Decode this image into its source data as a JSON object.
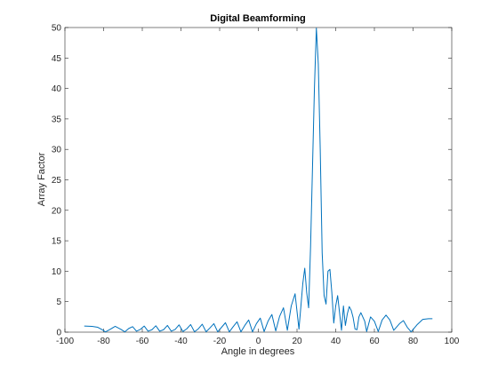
{
  "chart_data": {
    "type": "line",
    "title": "Digital Beamforming",
    "xlabel": "Angle in degrees",
    "ylabel": "Array Factor",
    "xlim": [
      -100,
      100
    ],
    "ylim": [
      0,
      50
    ],
    "xticks": [
      -100,
      -80,
      -60,
      -40,
      -20,
      0,
      20,
      40,
      60,
      80,
      100
    ],
    "yticks": [
      0,
      5,
      10,
      15,
      20,
      25,
      30,
      35,
      40,
      45,
      50
    ],
    "grid": false,
    "legend": "none",
    "series": [
      {
        "color": "#0072BD",
        "x": [
          -90,
          -86,
          -83,
          -81,
          -79,
          -77,
          -74,
          -71,
          -69,
          -67,
          -65,
          -63,
          -61,
          -59,
          -57,
          -55,
          -53,
          -51,
          -49,
          -47,
          -45,
          -43,
          -41,
          -39,
          -37,
          -35,
          -33,
          -31,
          -29,
          -27,
          -25,
          -23,
          -21,
          -19,
          -17,
          -15,
          -13,
          -11,
          -9,
          -7,
          -5,
          -3,
          -1,
          1,
          3,
          5,
          7,
          9,
          11,
          13,
          15,
          17,
          19,
          21,
          23,
          24,
          25,
          26,
          27,
          28,
          29,
          30,
          31,
          32,
          33,
          34,
          35,
          36,
          37,
          38,
          39,
          40,
          41,
          43,
          44,
          45,
          46,
          47,
          48,
          49,
          50,
          51,
          52,
          53,
          55,
          56,
          58,
          60,
          62,
          64,
          66,
          68,
          70,
          73,
          75,
          77,
          79,
          82,
          85,
          88,
          90
        ],
        "y": [
          1.0,
          0.95,
          0.8,
          0.45,
          0.05,
          0.4,
          0.95,
          0.45,
          0.05,
          0.6,
          0.9,
          0.15,
          0.45,
          1.0,
          0.15,
          0.4,
          1.05,
          0.15,
          0.4,
          1.1,
          0.15,
          0.45,
          1.2,
          0.1,
          0.55,
          1.25,
          0.05,
          0.55,
          1.3,
          0.05,
          0.7,
          1.4,
          0.05,
          0.8,
          1.55,
          0.05,
          0.9,
          1.7,
          0.05,
          1.1,
          2.0,
          0.05,
          1.4,
          2.3,
          0.1,
          1.8,
          2.9,
          0.2,
          2.6,
          4.0,
          0.3,
          4.3,
          6.3,
          0.5,
          8.0,
          10.5,
          6.5,
          4.0,
          14.0,
          27.0,
          40.0,
          49.9,
          44.0,
          30.0,
          13.0,
          6.0,
          4.6,
          10.0,
          10.3,
          6.5,
          1.5,
          4.3,
          6.0,
          0.3,
          4.3,
          1.1,
          3.0,
          4.2,
          3.6,
          2.4,
          0.5,
          0.4,
          2.5,
          3.2,
          1.8,
          0.1,
          2.5,
          1.8,
          0.1,
          2.0,
          2.8,
          2.0,
          0.3,
          1.4,
          1.9,
          0.8,
          0.05,
          1.2,
          2.1,
          2.2,
          2.2
        ]
      }
    ]
  }
}
